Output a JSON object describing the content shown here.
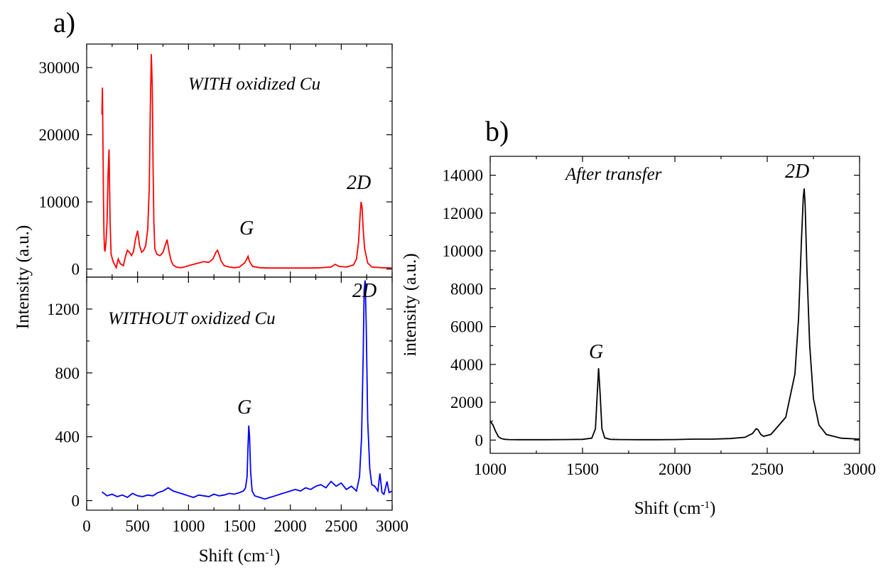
{
  "panel_labels": {
    "a": "a)",
    "b": "b)"
  },
  "chart_data": [
    {
      "id": "a-top",
      "type": "line",
      "title": "",
      "annotation": "WITH oxidized Cu",
      "peak_labels": [
        "G",
        "2D"
      ],
      "xlabel": "Shift (cm⁻¹)",
      "ylabel": "Intensity (a.u.)",
      "xlim": [
        0,
        3000
      ],
      "ylim": [
        -1200,
        33500
      ],
      "x_ticks": [
        0,
        500,
        1000,
        1500,
        2000,
        2500,
        3000
      ],
      "y_ticks": [
        0,
        10000,
        20000,
        30000
      ],
      "y_tick_labels": [
        "0",
        "10000",
        "20000",
        "30000"
      ],
      "grid": false,
      "color": "#ff0000",
      "series": [
        {
          "x": [
            150,
            155,
            160,
            165,
            170,
            175,
            180,
            190,
            200,
            210,
            220,
            230,
            240,
            260,
            290,
            310,
            330,
            360,
            380,
            400,
            420,
            440,
            460,
            480,
            500,
            520,
            540,
            560,
            580,
            600,
            615,
            625,
            635,
            645,
            652,
            660,
            670,
            690,
            720,
            750,
            770,
            790,
            810,
            830,
            850,
            880,
            920,
            960,
            1000,
            1050,
            1100,
            1150,
            1200,
            1240,
            1270,
            1285,
            1300,
            1320,
            1350,
            1400,
            1450,
            1500,
            1550,
            1570,
            1585,
            1600,
            1630,
            1700,
            1800,
            1900,
            2000,
            2100,
            2200,
            2300,
            2400,
            2440,
            2480,
            2550,
            2620,
            2650,
            2670,
            2685,
            2695,
            2705,
            2715,
            2730,
            2760,
            2800,
            2900,
            3000
          ],
          "y": [
            23000,
            27000,
            19000,
            10000,
            5000,
            3000,
            2600,
            4000,
            7000,
            14000,
            17800,
            7000,
            2200,
            1100,
            200,
            1500,
            800,
            500,
            1800,
            2800,
            2500,
            2000,
            2600,
            4500,
            5700,
            3500,
            2500,
            2800,
            3500,
            6000,
            12000,
            24000,
            32000,
            27000,
            15000,
            7000,
            3000,
            2200,
            2000,
            2500,
            3500,
            4400,
            2500,
            1200,
            600,
            300,
            200,
            300,
            500,
            700,
            900,
            1100,
            1000,
            1500,
            2500,
            2800,
            2200,
            1200,
            500,
            300,
            200,
            300,
            900,
            1400,
            1900,
            1100,
            400,
            200,
            150,
            150,
            150,
            150,
            150,
            200,
            300,
            700,
            400,
            300,
            600,
            1500,
            4000,
            8000,
            10000,
            9200,
            6000,
            3000,
            900,
            300,
            200,
            150
          ]
        }
      ]
    },
    {
      "id": "a-bottom",
      "type": "line",
      "title": "",
      "annotation": "WITHOUT oxidized Cu",
      "peak_labels": [
        "G",
        "2D"
      ],
      "xlabel": "Shift (cm⁻¹)",
      "ylabel": "Intensity (a.u.)",
      "xlim": [
        0,
        3000
      ],
      "ylim": [
        -60,
        1400
      ],
      "x_ticks": [
        0,
        500,
        1000,
        1500,
        2000,
        2500,
        3000
      ],
      "x_tick_labels": [
        "0",
        "500",
        "1000",
        "1500",
        "2000",
        "2500",
        "3000"
      ],
      "y_ticks": [
        0,
        400,
        800,
        1200
      ],
      "y_tick_labels": [
        "0",
        "400",
        "800",
        "1200"
      ],
      "grid": false,
      "color": "#0000ff",
      "series": [
        {
          "x": [
            150,
            200,
            250,
            300,
            350,
            400,
            450,
            500,
            550,
            600,
            650,
            700,
            750,
            800,
            850,
            900,
            950,
            1000,
            1050,
            1100,
            1150,
            1200,
            1250,
            1300,
            1350,
            1400,
            1450,
            1500,
            1540,
            1560,
            1575,
            1585,
            1592,
            1600,
            1610,
            1625,
            1650,
            1700,
            1750,
            1800,
            1850,
            1900,
            1950,
            2000,
            2050,
            2100,
            2150,
            2200,
            2250,
            2300,
            2350,
            2400,
            2450,
            2500,
            2550,
            2600,
            2650,
            2680,
            2700,
            2715,
            2725,
            2735,
            2745,
            2760,
            2780,
            2800,
            2830,
            2860,
            2880,
            2900,
            2920,
            2950,
            2970,
            3000
          ],
          "y": [
            55,
            30,
            40,
            25,
            35,
            20,
            45,
            30,
            25,
            35,
            30,
            50,
            60,
            80,
            60,
            50,
            40,
            30,
            20,
            35,
            30,
            25,
            40,
            30,
            35,
            45,
            40,
            50,
            60,
            80,
            150,
            350,
            470,
            400,
            180,
            60,
            30,
            20,
            10,
            20,
            30,
            40,
            50,
            60,
            70,
            60,
            80,
            70,
            90,
            100,
            80,
            120,
            90,
            110,
            70,
            90,
            60,
            150,
            400,
            900,
            1320,
            1380,
            1100,
            500,
            200,
            100,
            90,
            60,
            170,
            50,
            40,
            120,
            50,
            60
          ]
        }
      ]
    },
    {
      "id": "b",
      "type": "line",
      "title": "",
      "annotation": "After transfer",
      "peak_labels": [
        "G",
        "2D"
      ],
      "xlabel": "Shift (cm⁻¹)",
      "ylabel": "intensity (a.u.)",
      "xlim": [
        1000,
        3000
      ],
      "ylim": [
        -700,
        15000
      ],
      "x_ticks": [
        1000,
        1500,
        2000,
        2500,
        3000
      ],
      "x_tick_labels": [
        "1000",
        "1500",
        "2000",
        "2500",
        "3000"
      ],
      "y_ticks": [
        0,
        2000,
        4000,
        6000,
        8000,
        10000,
        12000,
        14000
      ],
      "y_tick_labels": [
        "0",
        "2000",
        "4000",
        "6000",
        "8000",
        "10000",
        "12000",
        "14000"
      ],
      "grid": false,
      "color": "#000000",
      "series": [
        {
          "x": [
            1000,
            1015,
            1030,
            1045,
            1060,
            1080,
            1100,
            1150,
            1200,
            1300,
            1400,
            1500,
            1550,
            1570,
            1580,
            1587,
            1595,
            1605,
            1620,
            1650,
            1700,
            1800,
            1900,
            2000,
            2100,
            2200,
            2300,
            2380,
            2420,
            2440,
            2450,
            2465,
            2480,
            2520,
            2600,
            2650,
            2670,
            2685,
            2695,
            2700,
            2705,
            2715,
            2730,
            2750,
            2780,
            2820,
            2900,
            3000
          ],
          "y": [
            1000,
            800,
            450,
            180,
            80,
            40,
            30,
            20,
            20,
            20,
            30,
            40,
            100,
            600,
            2500,
            3800,
            2500,
            600,
            120,
            40,
            30,
            20,
            20,
            30,
            50,
            50,
            80,
            150,
            350,
            600,
            550,
            300,
            200,
            300,
            1200,
            3500,
            6500,
            10500,
            12800,
            13300,
            12500,
            9000,
            5000,
            2200,
            800,
            300,
            100,
            50
          ]
        }
      ]
    }
  ]
}
